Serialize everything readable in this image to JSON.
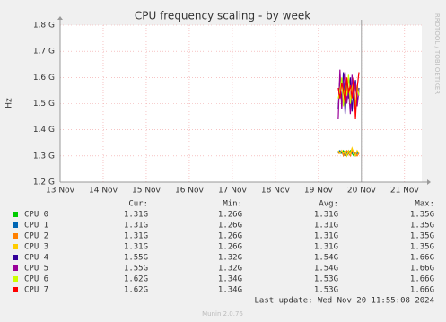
{
  "chart_data": {
    "type": "line",
    "title": "CPU frequency scaling - by week",
    "y_label": "Hz",
    "side_text": "RRDTOOL / TOBI OETIKER",
    "x": [
      19.46,
      19.5,
      19.54,
      19.58,
      19.62,
      19.66,
      19.7,
      19.74,
      19.78,
      19.82,
      19.86,
      19.9,
      19.94
    ],
    "xlim": [
      13,
      21.4
    ],
    "xticks": [
      {
        "value": 13,
        "label": "13 Nov"
      },
      {
        "value": 14,
        "label": "14 Nov"
      },
      {
        "value": 15,
        "label": "15 Nov"
      },
      {
        "value": 16,
        "label": "16 Nov"
      },
      {
        "value": 17,
        "label": "17 Nov"
      },
      {
        "value": 18,
        "label": "18 Nov"
      },
      {
        "value": 19,
        "label": "19 Nov"
      },
      {
        "value": 20,
        "label": "20 Nov"
      },
      {
        "value": 21,
        "label": "21 Nov"
      }
    ],
    "ylim": [
      1.2,
      1.8
    ],
    "yticks": [
      {
        "value": 1.2,
        "label": "1.2 G"
      },
      {
        "value": 1.3,
        "label": "1.3 G"
      },
      {
        "value": 1.4,
        "label": "1.4 G"
      },
      {
        "value": 1.5,
        "label": "1.5 G"
      },
      {
        "value": 1.6,
        "label": "1.6 G"
      },
      {
        "value": 1.7,
        "label": "1.7 G"
      },
      {
        "value": 1.8,
        "label": "1.8 G"
      }
    ],
    "grid": true,
    "now_line": 20,
    "stat_headers": [
      "Cur:",
      "Min:",
      "Avg:",
      "Max:"
    ],
    "series": [
      {
        "name": "CPU 0",
        "color": "#00cc00",
        "values": [
          1.32,
          1.31,
          1.31,
          1.32,
          1.31,
          1.3,
          1.31,
          1.32,
          1.31,
          1.3,
          1.31,
          1.31,
          1.31
        ],
        "stats": [
          "1.31G",
          "1.26G",
          "1.31G",
          "1.35G"
        ]
      },
      {
        "name": "CPU 1",
        "color": "#0066b3",
        "values": [
          1.31,
          1.32,
          1.31,
          1.31,
          1.3,
          1.31,
          1.32,
          1.31,
          1.31,
          1.32,
          1.3,
          1.31,
          1.31
        ],
        "stats": [
          "1.31G",
          "1.26G",
          "1.31G",
          "1.35G"
        ]
      },
      {
        "name": "CPU 2",
        "color": "#ff8000",
        "values": [
          1.31,
          1.31,
          1.32,
          1.3,
          1.31,
          1.32,
          1.31,
          1.3,
          1.32,
          1.31,
          1.31,
          1.3,
          1.31
        ],
        "stats": [
          "1.31G",
          "1.26G",
          "1.31G",
          "1.35G"
        ]
      },
      {
        "name": "CPU 3",
        "color": "#ffcc00",
        "values": [
          1.32,
          1.31,
          1.32,
          1.31,
          1.32,
          1.3,
          1.32,
          1.31,
          1.33,
          1.31,
          1.3,
          1.32,
          1.31
        ],
        "stats": [
          "1.31G",
          "1.26G",
          "1.31G",
          "1.35G"
        ]
      },
      {
        "name": "CPU 4",
        "color": "#330099",
        "values": [
          1.48,
          1.6,
          1.5,
          1.62,
          1.46,
          1.58,
          1.52,
          1.6,
          1.47,
          1.55,
          1.59,
          1.5,
          1.56
        ],
        "stats": [
          "1.55G",
          "1.32G",
          "1.54G",
          "1.66G"
        ]
      },
      {
        "name": "CPU 5",
        "color": "#990099",
        "values": [
          1.44,
          1.63,
          1.48,
          1.58,
          1.62,
          1.5,
          1.56,
          1.46,
          1.61,
          1.52,
          1.58,
          1.49,
          1.55
        ],
        "stats": [
          "1.55G",
          "1.32G",
          "1.54G",
          "1.66G"
        ]
      },
      {
        "name": "CPU 6",
        "color": "#ccff00",
        "values": [
          1.52,
          1.55,
          1.6,
          1.49,
          1.57,
          1.53,
          1.61,
          1.5,
          1.56,
          1.58,
          1.48,
          1.57,
          1.53
        ],
        "stats": [
          "1.62G",
          "1.34G",
          "1.53G",
          "1.66G"
        ]
      },
      {
        "name": "CPU 7",
        "color": "#ff0000",
        "values": [
          1.56,
          1.52,
          1.58,
          1.55,
          1.5,
          1.6,
          1.54,
          1.57,
          1.52,
          1.6,
          1.44,
          1.56,
          1.62
        ],
        "stats": [
          "1.62G",
          "1.34G",
          "1.53G",
          "1.66G"
        ]
      }
    ],
    "last_update": "Last update: Wed Nov 20 11:55:08 2024",
    "footer": "Munin 2.0.76"
  }
}
